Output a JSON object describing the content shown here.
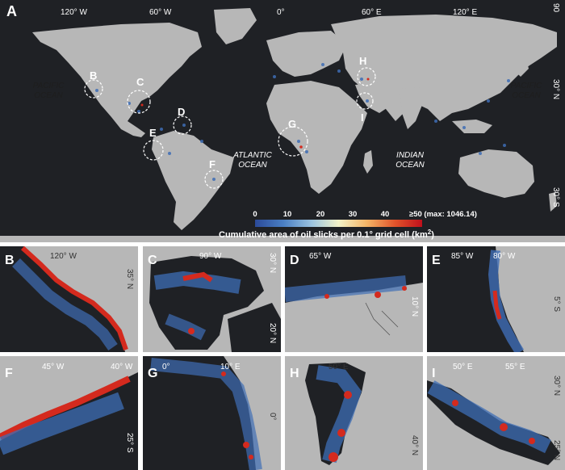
{
  "main_map": {
    "panel_letter": "A",
    "top_axis": [
      "120° W",
      "60° W",
      "0°",
      "60° E",
      "120° E"
    ],
    "top_axis_corner": "90",
    "right_axis": [
      "30° N",
      "30° S"
    ],
    "ocean_labels": {
      "pacific_left": [
        "PACIFIC",
        "OCEAN"
      ],
      "pacific_right": [
        "PACIFIC",
        "OCEAN"
      ],
      "atlantic": [
        "ATLANTIC",
        "OCEAN"
      ],
      "indian": [
        "INDIAN",
        "OCEAN"
      ]
    },
    "regions": [
      "B",
      "C",
      "D",
      "E",
      "F",
      "G",
      "H",
      "I"
    ]
  },
  "legend": {
    "ticks": [
      "0",
      "10",
      "20",
      "30",
      "40",
      "≥50 (max: 1046.14)"
    ],
    "title_main": "Cumulative area of oil slicks per 0.1° grid cell (km",
    "title_sup": "2",
    "title_end": ")",
    "colors": [
      "#2b4a9a",
      "#4a7fc4",
      "#9cc4e0",
      "#f2f2c8",
      "#f4b466",
      "#e0522a",
      "#c0101c"
    ]
  },
  "colors": {
    "ocean": "#1f2125",
    "land": "#b7b7b7",
    "low": "#3e6db5",
    "high": "#d42a1e"
  },
  "panels": [
    {
      "letter": "B",
      "labels": [
        {
          "text": "120° W"
        },
        {
          "text": "35° N"
        }
      ]
    },
    {
      "letter": "C",
      "labels": [
        {
          "text": "90° W"
        },
        {
          "text": "30° N"
        },
        {
          "text": "20° N"
        }
      ]
    },
    {
      "letter": "D",
      "labels": [
        {
          "text": "65° W"
        },
        {
          "text": "10° N"
        }
      ]
    },
    {
      "letter": "E",
      "labels": [
        {
          "text": "85° W"
        },
        {
          "text": "80° W"
        },
        {
          "text": "5° S"
        }
      ]
    },
    {
      "letter": "F",
      "labels": [
        {
          "text": "45° W"
        },
        {
          "text": "40° W"
        },
        {
          "text": "25° S"
        }
      ]
    },
    {
      "letter": "G",
      "labels": [
        {
          "text": "0°"
        },
        {
          "text": "10° E"
        },
        {
          "text": "0°"
        }
      ]
    },
    {
      "letter": "H",
      "labels": [
        {
          "text": "50° E"
        },
        {
          "text": "40° N"
        }
      ]
    },
    {
      "letter": "I",
      "labels": [
        {
          "text": "50° E"
        },
        {
          "text": "55° E"
        },
        {
          "text": "30° N"
        },
        {
          "text": "25° N"
        }
      ]
    }
  ]
}
